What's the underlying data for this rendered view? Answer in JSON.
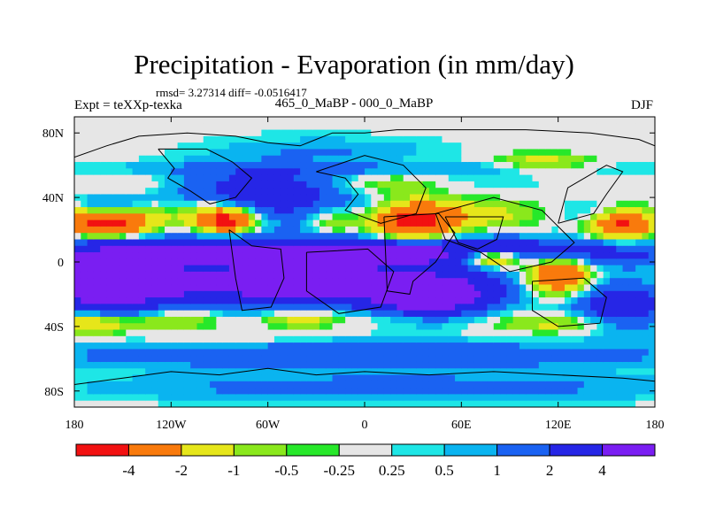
{
  "header": {
    "title": "Precipitation - Evaporation (in mm/day)",
    "stats": "rmsd= 3.27314  diff= -0.0516417",
    "experiment": "Expt = teXXp-texka",
    "period": "465_0_MaBP - 000_0_MaBP",
    "season": "DJF"
  },
  "chart_data": {
    "type": "heatmap",
    "title": "Precipitation - Evaporation (in mm/day)",
    "subtitle": "465_0_MaBP - 000_0_MaBP",
    "xlabel": "",
    "ylabel": "",
    "xlim": [
      -180,
      180
    ],
    "ylim": [
      -90,
      90
    ],
    "x_ticks": [
      {
        "value": -180,
        "label": "180"
      },
      {
        "value": -120,
        "label": "120W"
      },
      {
        "value": -60,
        "label": "60W"
      },
      {
        "value": 0,
        "label": "0"
      },
      {
        "value": 60,
        "label": "60E"
      },
      {
        "value": 120,
        "label": "120E"
      },
      {
        "value": 180,
        "label": "180"
      }
    ],
    "y_ticks": [
      {
        "value": 80,
        "label": "80N"
      },
      {
        "value": 40,
        "label": "40N"
      },
      {
        "value": 0,
        "label": "0"
      },
      {
        "value": -40,
        "label": "40S"
      },
      {
        "value": -80,
        "label": "80S"
      }
    ],
    "colorbar": {
      "colors": [
        "#f21111",
        "#f97a0c",
        "#e6e61a",
        "#8ae81c",
        "#27e82a",
        "#e6e6e6",
        "#1ee6e6",
        "#0ab4f0",
        "#1a62f2",
        "#2626e6",
        "#7a1ef2"
      ],
      "labels": [
        "-4",
        "-2",
        "-1",
        "-0.5",
        "-0.25",
        "0.25",
        "0.5",
        "1",
        "2",
        "4"
      ]
    },
    "base_value": 0.1,
    "features": [
      {
        "lon": 0,
        "lat": 82,
        "rx": 220,
        "ry": 9,
        "value": 0.1
      },
      {
        "lon": -15,
        "lat": 6,
        "rx": 200,
        "ry": 9,
        "value": 5
      },
      {
        "lon": -50,
        "lat": -14,
        "rx": 125,
        "ry": 13,
        "value": 5
      },
      {
        "lon": -160,
        "lat": -14,
        "rx": 35,
        "ry": 18,
        "value": 5
      },
      {
        "lon": 40,
        "lat": -22,
        "rx": 35,
        "ry": 12,
        "value": 5
      },
      {
        "lon": 160,
        "lat": -28,
        "rx": 30,
        "ry": 14,
        "value": 3
      },
      {
        "lon": -60,
        "lat": 42,
        "rx": 60,
        "ry": 18,
        "value": 3
      },
      {
        "lon": -160,
        "lat": 33,
        "rx": 22,
        "ry": 7,
        "value": 3
      },
      {
        "lon": 150,
        "lat": 30,
        "rx": 26,
        "ry": 8,
        "value": 1.5
      },
      {
        "lon": 0,
        "lat": 58,
        "rx": 180,
        "ry": 4,
        "value": 0.7
      },
      {
        "lon": 0,
        "lat": -58,
        "rx": 200,
        "ry": 8,
        "value": 2
      },
      {
        "lon": 20,
        "lat": -78,
        "rx": 170,
        "ry": 8,
        "value": 1.5
      },
      {
        "lon": 60,
        "lat": 50,
        "rx": 55,
        "ry": 12,
        "value": 0.4
      },
      {
        "lon": -20,
        "lat": 70,
        "rx": 60,
        "ry": 6,
        "value": 0.8
      },
      {
        "lon": -160,
        "lat": 28,
        "rx": 30,
        "ry": 8,
        "value": -5
      },
      {
        "lon": -160,
        "lat": 20,
        "rx": 25,
        "ry": 6,
        "value": -2.5
      },
      {
        "lon": -100,
        "lat": 30,
        "rx": 25,
        "ry": 10,
        "value": -1.5
      },
      {
        "lon": -85,
        "lat": 26,
        "rx": 18,
        "ry": 8,
        "value": -5
      },
      {
        "lon": -20,
        "lat": 25,
        "rx": 15,
        "ry": 10,
        "value": -1.5
      },
      {
        "lon": 30,
        "lat": 25,
        "rx": 25,
        "ry": 12,
        "value": -5
      },
      {
        "lon": 70,
        "lat": 30,
        "rx": 40,
        "ry": 10,
        "value": -1.5
      },
      {
        "lon": 160,
        "lat": 24,
        "rx": 20,
        "ry": 10,
        "value": -5
      },
      {
        "lon": 10,
        "lat": 48,
        "rx": 40,
        "ry": 7,
        "value": -1.5
      },
      {
        "lon": -140,
        "lat": 48,
        "rx": 30,
        "ry": 6,
        "value": -0.7
      },
      {
        "lon": 110,
        "lat": 62,
        "rx": 30,
        "ry": 6,
        "value": -1.5
      },
      {
        "lon": 80,
        "lat": 2,
        "rx": 20,
        "ry": 6,
        "value": -5
      },
      {
        "lon": 120,
        "lat": -8,
        "rx": 20,
        "ry": 12,
        "value": -5
      },
      {
        "lon": -170,
        "lat": -38,
        "rx": 25,
        "ry": 7,
        "value": -2.5
      },
      {
        "lon": -120,
        "lat": -36,
        "rx": 30,
        "ry": 6,
        "value": -1.5
      },
      {
        "lon": -40,
        "lat": -36,
        "rx": 25,
        "ry": 5,
        "value": -1.5
      },
      {
        "lon": 20,
        "lat": -34,
        "rx": 40,
        "ry": 5,
        "value": -0.7
      },
      {
        "lon": 120,
        "lat": -38,
        "rx": 40,
        "ry": 6,
        "value": -1.5
      },
      {
        "lon": -90,
        "lat": -48,
        "rx": 40,
        "ry": 5,
        "value": -0.5
      }
    ],
    "continent_outlines": [
      [
        [
          -180,
          65
        ],
        [
          -160,
          72
        ],
        [
          -140,
          78
        ],
        [
          -110,
          80
        ],
        [
          -80,
          78
        ],
        [
          -60,
          74
        ],
        [
          -40,
          72
        ],
        [
          -30,
          76
        ],
        [
          -20,
          80
        ],
        [
          0,
          80
        ],
        [
          20,
          82
        ],
        [
          60,
          82
        ],
        [
          100,
          82
        ],
        [
          140,
          80
        ],
        [
          170,
          76
        ],
        [
          180,
          72
        ]
      ],
      [
        [
          -128,
          70
        ],
        [
          -118,
          58
        ],
        [
          -122,
          52
        ],
        [
          -108,
          44
        ],
        [
          -96,
          36
        ],
        [
          -80,
          40
        ],
        [
          -70,
          52
        ],
        [
          -82,
          62
        ],
        [
          -98,
          70
        ],
        [
          -128,
          70
        ]
      ],
      [
        [
          -30,
          56
        ],
        [
          -12,
          52
        ],
        [
          -4,
          42
        ],
        [
          -12,
          32
        ],
        [
          10,
          24
        ],
        [
          32,
          30
        ],
        [
          38,
          46
        ],
        [
          24,
          60
        ],
        [
          0,
          66
        ],
        [
          -30,
          56
        ]
      ],
      [
        [
          -84,
          20
        ],
        [
          -70,
          10
        ],
        [
          -52,
          8
        ],
        [
          -50,
          -10
        ],
        [
          -58,
          -28
        ],
        [
          -76,
          -30
        ],
        [
          -80,
          -10
        ],
        [
          -84,
          20
        ]
      ],
      [
        [
          -36,
          6
        ],
        [
          2,
          8
        ],
        [
          18,
          -6
        ],
        [
          10,
          -28
        ],
        [
          -16,
          -32
        ],
        [
          -36,
          -18
        ],
        [
          -36,
          6
        ]
      ],
      [
        [
          12,
          28
        ],
        [
          46,
          30
        ],
        [
          56,
          18
        ],
        [
          44,
          0
        ],
        [
          30,
          -12
        ],
        [
          28,
          -20
        ],
        [
          14,
          -18
        ],
        [
          12,
          28
        ]
      ],
      [
        [
          44,
          30
        ],
        [
          80,
          40
        ],
        [
          110,
          32
        ],
        [
          130,
          12
        ],
        [
          116,
          0
        ],
        [
          90,
          -6
        ],
        [
          72,
          6
        ],
        [
          50,
          14
        ],
        [
          44,
          30
        ]
      ],
      [
        [
          50,
          28
        ],
        [
          58,
          12
        ],
        [
          70,
          8
        ],
        [
          82,
          14
        ],
        [
          86,
          28
        ],
        [
          50,
          28
        ]
      ],
      [
        [
          104,
          -12
        ],
        [
          136,
          -10
        ],
        [
          150,
          -22
        ],
        [
          146,
          -38
        ],
        [
          120,
          -40
        ],
        [
          104,
          -30
        ],
        [
          104,
          -12
        ]
      ],
      [
        [
          120,
          24
        ],
        [
          142,
          30
        ],
        [
          150,
          42
        ],
        [
          160,
          56
        ],
        [
          150,
          60
        ],
        [
          126,
          46
        ],
        [
          120,
          24
        ]
      ],
      [
        [
          -180,
          -76
        ],
        [
          -150,
          -72
        ],
        [
          -120,
          -68
        ],
        [
          -90,
          -70
        ],
        [
          -60,
          -66
        ],
        [
          -30,
          -70
        ],
        [
          0,
          -68
        ],
        [
          40,
          -70
        ],
        [
          80,
          -68
        ],
        [
          120,
          -70
        ],
        [
          160,
          -72
        ],
        [
          180,
          -74
        ]
      ]
    ]
  }
}
